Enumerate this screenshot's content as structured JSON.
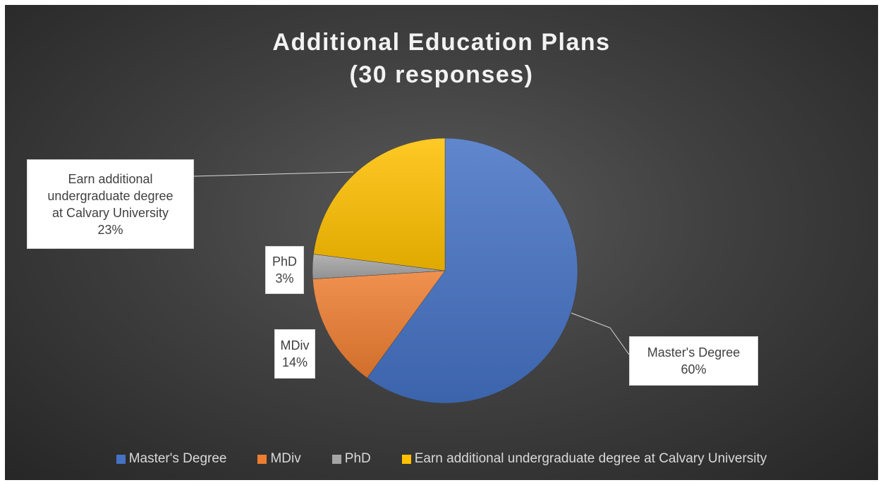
{
  "chart_data": {
    "type": "pie",
    "title": "Additional Education Plans (30 responses)",
    "title_lines": [
      "Additional Education Plans",
      "(30 responses)"
    ],
    "categories": [
      "Master's Degree",
      "MDiv",
      "PhD",
      "Earn additional undergraduate degree at Calvary University"
    ],
    "values": [
      60,
      14,
      3,
      23
    ],
    "value_labels": [
      "60%",
      "14%",
      "3%",
      "23%"
    ],
    "colors": [
      "#4472c4",
      "#ed7d31",
      "#a5a5a5",
      "#ffc000"
    ],
    "legend_position": "bottom",
    "data_labels": [
      {
        "lines": [
          "Master's Degree",
          "60%"
        ]
      },
      {
        "lines": [
          "MDiv",
          "14%"
        ]
      },
      {
        "lines": [
          "PhD",
          "3%"
        ]
      },
      {
        "lines": [
          "Earn additional",
          "undergraduate degree",
          "at Calvary University",
          "23%"
        ]
      }
    ]
  }
}
